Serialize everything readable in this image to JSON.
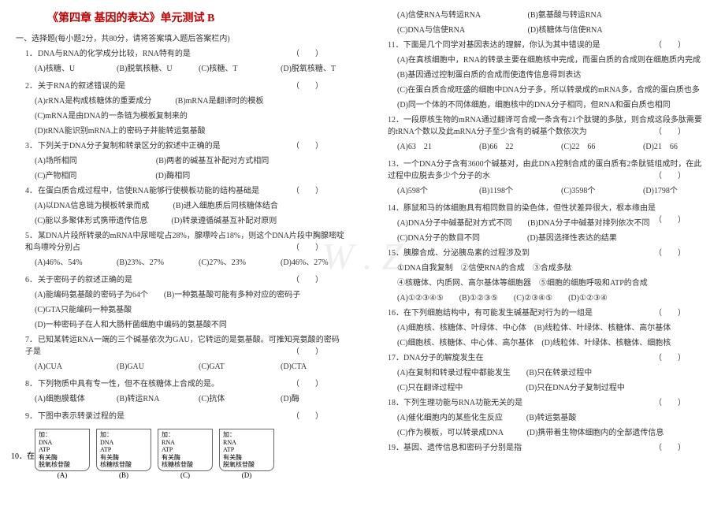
{
  "title": "《第四章 基因的表达》单元测试 B",
  "section_header": "一、选择题(每小题2分，共80分，请将答案填入题后答案栏内)",
  "left_questions": [
    {
      "num": "1．",
      "text": "DNA与RNA的化学成分比较，RNA特有的是",
      "bracket": "（　　）",
      "options": [
        {
          "label": "(A)核糖、U",
          "inline": true
        },
        {
          "label": "(B)脱氧核糖、U",
          "inline": true
        },
        {
          "label": "(C)核糖、T",
          "inline": true
        },
        {
          "label": "(D)脱氧核糖、T",
          "inline": true
        }
      ]
    },
    {
      "num": "2．",
      "text": "关于RNA的叙述错误的是",
      "bracket": "（　　）",
      "options": [
        {
          "label": "(A)rRNA是构成核糖体的重要成分　　　(B)mRNA是翻译时的模板"
        },
        {
          "label": "(C)mRNA是由DNA的一条链为模板复制来的"
        },
        {
          "label": "(D)tRNA能识别mRNA上的密码子并能转运氨基酸"
        }
      ]
    },
    {
      "num": "3．",
      "text": "下列关于DNA分子复制和转录区分的叙述中正确的是",
      "bracket": "（　　）",
      "options": [
        {
          "label": "(A)场所相同　　　　　　　　　　(B)两者的碱基互补配对方式相同"
        },
        {
          "label": "(C)产物相同　　　　　　　　　　(D)酶相同"
        }
      ]
    },
    {
      "num": "4．",
      "text": "在蛋白质合成过程中，信使RNA能够行使模板功能的结构基础是",
      "bracket": "（　　）",
      "options": [
        {
          "label": "(A)以DNA信息链为模板转录而成　　　(B)进入细胞质后同核糖体结合"
        },
        {
          "label": "(C)能以多聚体形式携带遗传信息　　　(D)转录遵循碱基互补配对原则"
        }
      ]
    },
    {
      "num": "5．",
      "text": "某DNA片段所转录的mRNA中尿嘧啶占28%，腺嘌呤占18%，则这个DNA片段中胸腺嘧啶和鸟嘌呤分别占",
      "bracket": "（　　）",
      "options": [
        {
          "label": "(A)46%、54%",
          "inline": true
        },
        {
          "label": "(B)23%、27%",
          "inline": true
        },
        {
          "label": "(C)27%、23%",
          "inline": true
        },
        {
          "label": "(D)46%、27%",
          "inline": true
        }
      ]
    },
    {
      "num": "6．",
      "text": "关于密码子的叙述正确的是",
      "bracket": "（　　）",
      "options": [
        {
          "label": "(A)能编码氨基酸的密码子为64个　　(B)一种氨基酸可能有多种对应的密码子"
        },
        {
          "label": "(C)GTA只能编码一种氨基酸"
        },
        {
          "label": "(D)一种密码子在人和大肠杆菌细胞中编码的氨基酸不同"
        }
      ]
    },
    {
      "num": "7．",
      "text": "已知某转运RNA一端的三个碱基依次为GAU，它转运的是氨基酸。可推知亮氨酸的密码子是",
      "bracket": "（　　）",
      "options": [
        {
          "label": "(A)CUA",
          "inline": true
        },
        {
          "label": "(B)GAU",
          "inline": true
        },
        {
          "label": "(C)GAT",
          "inline": true
        },
        {
          "label": "(D)CTA",
          "inline": true
        }
      ]
    },
    {
      "num": "8．",
      "text": "下列物质中具有专一性，但不在核糖体上合成的是。",
      "bracket": "（　　）",
      "options": [
        {
          "label": "(A)细胞膜载体",
          "inline": true
        },
        {
          "label": "(B)转运RNA",
          "inline": true
        },
        {
          "label": "(C)抗体",
          "inline": true
        },
        {
          "label": "(D)酶",
          "inline": true
        }
      ]
    },
    {
      "num": "9．",
      "text": "下图中表示转录过程的是",
      "bracket": "（　　）"
    }
  ],
  "tubes": [
    {
      "tag": "加：",
      "lines": [
        "DNA",
        "ATP",
        "有关酶",
        "脱氧核苷酸"
      ]
    },
    {
      "tag": "加：",
      "lines": [
        "DNA",
        "ATP",
        "有关酶",
        "核糖核苷酸"
      ]
    },
    {
      "tag": "加：",
      "lines": [
        "RNA",
        "ATP",
        "有关酶",
        "核糖核苷酸"
      ]
    },
    {
      "tag": "加：",
      "lines": [
        "RNA",
        "ATP",
        "有关酶",
        "脱氧核苷酸"
      ]
    }
  ],
  "tube_labels": [
    "(A)",
    "(B)",
    "(C)",
    "(D)"
  ],
  "q10_prefix": "10．在",
  "right_questions": [
    {
      "options": [
        {
          "label": "(A)信使RNA与转运RNA　　　　　　(B)氨基酸与转运RNA"
        },
        {
          "label": "(C)DNA与信使RNA　　　　　　　　(D)核糖体与信使RNA"
        }
      ]
    },
    {
      "num": "11．",
      "text": "下面是几个同学对基因表达的理解，你认为其中错误的是",
      "bracket": "（　　）",
      "options": [
        {
          "label": "(A)在真核细胞中，RNA的转录主要在细胞核中完成，而蛋白质的合成则在细胞质内完成"
        },
        {
          "label": "(B)基因通过控制蛋白质的合成而使遗传信息得到表达"
        },
        {
          "label": "(C)在蛋白质合成旺盛的细胞中DNA分子多，所以转录成的mRNA多，合成的蛋白质也多"
        },
        {
          "label": "(D)同一个体的不同体细胞，细胞核中的DNA分子相同，但RNA和蛋白质也相同"
        }
      ]
    },
    {
      "num": "12．",
      "text": "一段原核生物的mRNA通过翻译可合成一条含有21个肽键的多肽，则合成这段多肽需要的tRNA个数以及此mRNA分子至少含有的碱基个数依次为",
      "bracket": "（　　）",
      "options": [
        {
          "label": "(A)63　21",
          "inline": true
        },
        {
          "label": "(B)66　22",
          "inline": true
        },
        {
          "label": "(C)22　66",
          "inline": true
        },
        {
          "label": "(D)21　66",
          "inline": true
        }
      ]
    },
    {
      "num": "13．",
      "text": "一个DNA分子含有3600个碱基对，由此DNA控制合成的蛋白质有2条肽链组成时，在此过程中应脱去多少个分子的水",
      "bracket": "（　　）",
      "options": [
        {
          "label": "(A)598个",
          "inline": true
        },
        {
          "label": "(B)1198个",
          "inline": true
        },
        {
          "label": "(C)3598个",
          "inline": true
        },
        {
          "label": "(D)1798个",
          "inline": true
        }
      ]
    },
    {
      "num": "14．",
      "text": "豚鼠和马的体细胞具有相同数目的染色体，但性状差异很大，根本缘由是",
      "bracket": "（　　）",
      "options": [
        {
          "label": "(A)DNA分子中碱基配对方式不同　　(B)DNA分子中碱基对排列依次不同"
        },
        {
          "label": "(C)DNA分子的数目不同　　　　　　(D)基因选择性表达的结果"
        }
      ]
    },
    {
      "num": "15．",
      "text": "胰腺合成、分泌胰岛素的过程涉及到",
      "bracket": "（　　）",
      "options": [
        {
          "label": "①DNA自我复制　②信使RNA的合成　③合成多肽"
        },
        {
          "label": "④核糖体、内质网、高尔基体等细胞器　⑤细胞的细胞呼吸和ATP的合成"
        },
        {
          "label": "(A)①②③④⑤　　(B)①②③⑤　　(C)②③④⑤　　(D)①②③④"
        }
      ]
    },
    {
      "num": "16．",
      "text": "在下列细胞结构中，有可能发生碱基配对行为的一组是",
      "bracket": "（　　）",
      "options": [
        {
          "label": "(A)细胞核、核糖体、叶绿体、中心体　(B)线粒体、叶绿体、核糖体、高尔基体"
        },
        {
          "label": "(C)细胞核、核糖体、中心体、高尔基体　(D)线粒体、叶绿体、核糖体、细胞核"
        }
      ]
    },
    {
      "num": "17．",
      "text": "DNA分子的解旋发生在",
      "bracket": "（　　）",
      "options": [
        {
          "label": "(A)在复制和转录过程中都能发生　　(B)只在转录过程中"
        },
        {
          "label": "(C)只在翻译过程中　　　　　　　　(D)只在DNA分子复制过程中"
        }
      ]
    },
    {
      "num": "18．",
      "text": "下列生理功能与RNA功能无关的是",
      "bracket": "（　　）",
      "options": [
        {
          "label": "(A)催化细胞内的某些化生反应　　　(B)转运氨基酸"
        },
        {
          "label": "(C)作为模板，可以转录成DNA　　　(D)携带着生物体细胞内的全部遗传信息"
        }
      ]
    },
    {
      "num": "19．",
      "text": "基因、遗传信息和密码子分别是指",
      "bracket": "（　　）"
    }
  ]
}
